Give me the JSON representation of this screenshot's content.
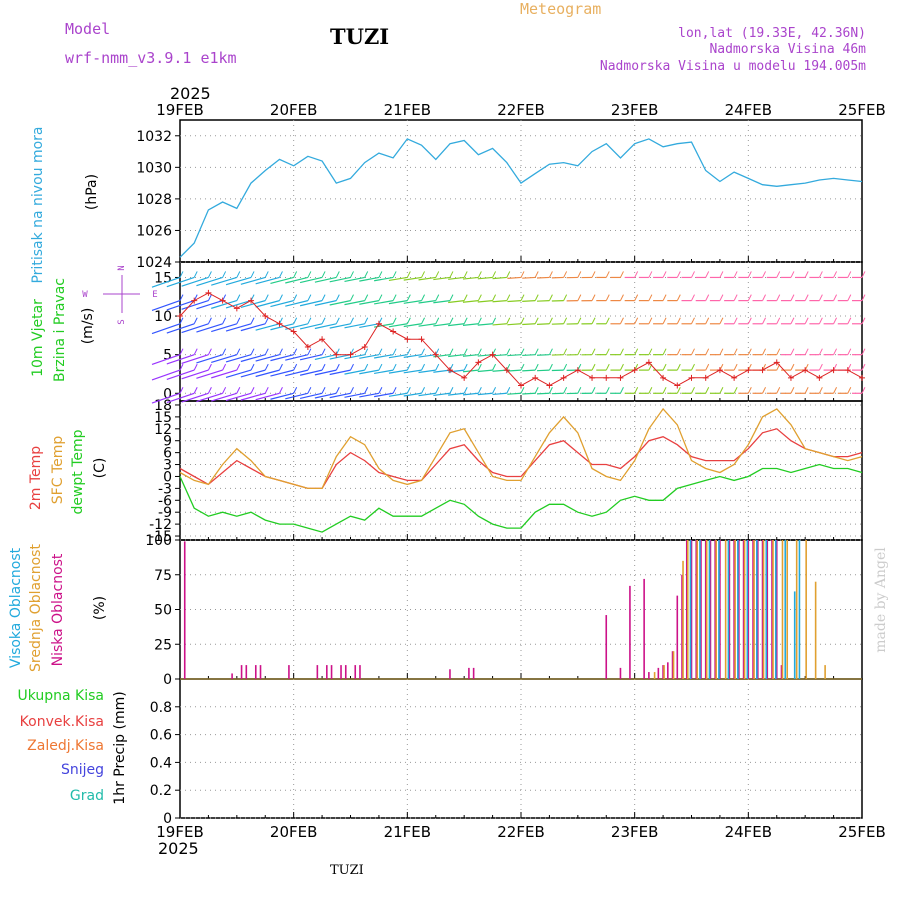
{
  "header": {
    "model_label": "Model",
    "model_name": "wrf-nmm_v3.9.1  e1km",
    "station": "TUZI",
    "chart_title": "Meteogram",
    "lonlat": "lon,lat (19.33E, 42.36N)",
    "elevation": "Nadmorska Visina 46m",
    "model_elevation": "Nadmorska Visina u modelu 194.005m"
  },
  "footer": {
    "station": "TUZI",
    "credit": "made by Angel"
  },
  "colors": {
    "pressure": "#33aadd",
    "temp2m": "#e84040",
    "sfc_temp": "#e0a030",
    "dewpoint": "#22cc22",
    "high_cloud": "#22aadd",
    "mid_cloud": "#e0a030",
    "low_cloud": "#cc1188",
    "wind_trace": "#dd2222",
    "grid": "#999999",
    "purple_text": "#aa44cc",
    "orange_title": "#e8b060"
  },
  "chart_data": [
    {
      "type": "line",
      "panel": "pressure",
      "year": "2025",
      "x_tick_labels": [
        "19FEB",
        "20FEB",
        "21FEB",
        "22FEB",
        "23FEB",
        "24FEB",
        "25FEB"
      ],
      "xlim": [
        0,
        144
      ],
      "labels": [
        "Pritisak na nivou mora",
        "(hPa)"
      ],
      "ylim": [
        1024,
        1033
      ],
      "y_ticks": [
        1024,
        1026,
        1028,
        1030,
        1032
      ],
      "grid": true,
      "series": [
        {
          "x": [
            0,
            3,
            6,
            9,
            12,
            15,
            18,
            21,
            24,
            27,
            30,
            33,
            36,
            39,
            42,
            45,
            48,
            51,
            54,
            57,
            60,
            63,
            66,
            69,
            72,
            75,
            78,
            81,
            84,
            87,
            90,
            93,
            96,
            99,
            102,
            105,
            108,
            111,
            114,
            117,
            120,
            123,
            126,
            129,
            132,
            135,
            138,
            141,
            144
          ],
          "values": [
            1024.3,
            1025.2,
            1027.3,
            1027.8,
            1027.4,
            1029.0,
            1029.8,
            1030.5,
            1030.1,
            1030.7,
            1030.4,
            1029.0,
            1029.3,
            1030.3,
            1030.9,
            1030.6,
            1031.8,
            1031.4,
            1030.5,
            1031.5,
            1031.7,
            1030.8,
            1031.2,
            1030.3,
            1029.0,
            1029.6,
            1030.2,
            1030.3,
            1030.1,
            1031.0,
            1031.5,
            1030.6,
            1031.5,
            1031.8,
            1031.3,
            1031.5,
            1031.6,
            1029.8,
            1029.1,
            1029.7,
            1029.3,
            1028.9,
            1028.8,
            1028.9,
            1029.0,
            1029.2,
            1029.3,
            1029.2,
            1029.1
          ]
        }
      ]
    },
    {
      "type": "line",
      "panel": "wind",
      "labels": [
        "10m Vjetar",
        "Brzina i Pravac",
        "(m/s)"
      ],
      "compass": [
        "N",
        "W",
        "E",
        "S"
      ],
      "ylim": [
        -1,
        17
      ],
      "y_ticks": [
        0,
        5,
        10,
        15
      ],
      "grid": true,
      "series": [
        {
          "name": "speed",
          "x": [
            0,
            3,
            6,
            9,
            12,
            15,
            18,
            21,
            24,
            27,
            30,
            33,
            36,
            39,
            42,
            45,
            48,
            51,
            54,
            57,
            60,
            63,
            66,
            69,
            72,
            75,
            78,
            81,
            84,
            87,
            90,
            93,
            96,
            99,
            102,
            105,
            108,
            111,
            114,
            117,
            120,
            123,
            126,
            129,
            132,
            135,
            138,
            141,
            144
          ],
          "values": [
            10,
            12,
            13,
            12,
            11,
            12,
            10,
            9,
            8,
            6,
            7,
            5,
            5,
            6,
            9,
            8,
            7,
            7,
            5,
            3,
            2,
            4,
            5,
            3,
            1,
            2,
            1,
            2,
            3,
            2,
            2,
            2,
            3,
            4,
            2,
            1,
            2,
            2,
            3,
            2,
            3,
            3,
            4,
            2,
            3,
            2,
            3,
            3,
            2
          ]
        }
      ],
      "barb_rows": [
        0,
        3,
        5,
        9,
        12,
        15
      ]
    },
    {
      "type": "line",
      "panel": "temperature",
      "labels": [
        "2m Temp",
        "SFC Temp",
        "dewpt Temp",
        "(C)"
      ],
      "ylim": [
        -16,
        19
      ],
      "y_ticks": [
        -15,
        -12,
        -9,
        -6,
        -3,
        0,
        3,
        6,
        9,
        12,
        15,
        18
      ],
      "grid": true,
      "x": [
        0,
        3,
        6,
        9,
        12,
        15,
        18,
        21,
        24,
        27,
        30,
        33,
        36,
        39,
        42,
        45,
        48,
        51,
        54,
        57,
        60,
        63,
        66,
        69,
        72,
        75,
        78,
        81,
        84,
        87,
        90,
        93,
        96,
        99,
        102,
        105,
        108,
        111,
        114,
        117,
        120,
        123,
        126,
        129,
        132,
        135,
        138,
        141,
        144
      ],
      "series": [
        {
          "name": "2m Temp",
          "values": [
            2,
            0,
            -2,
            1,
            4,
            2,
            0,
            -1,
            -2,
            -3,
            -3,
            3,
            6,
            4,
            1,
            0,
            -1,
            -1,
            3,
            7,
            8,
            4,
            1,
            0,
            0,
            4,
            8,
            9,
            6,
            3,
            3,
            2,
            5,
            9,
            10,
            8,
            5,
            4,
            4,
            4,
            7,
            11,
            12,
            9,
            7,
            6,
            5,
            5,
            6
          ]
        },
        {
          "name": "SFC Temp",
          "values": [
            1,
            -1,
            -2,
            3,
            7,
            4,
            0,
            -1,
            -2,
            -3,
            -3,
            5,
            10,
            8,
            2,
            -1,
            -2,
            -1,
            5,
            11,
            12,
            6,
            0,
            -1,
            -1,
            5,
            11,
            15,
            11,
            2,
            0,
            -1,
            4,
            12,
            17,
            13,
            4,
            2,
            1,
            3,
            8,
            15,
            17,
            13,
            7,
            6,
            5,
            4,
            5
          ]
        },
        {
          "name": "dewpt Temp",
          "values": [
            0,
            -8,
            -10,
            -9,
            -10,
            -9,
            -11,
            -12,
            -12,
            -13,
            -14,
            -12,
            -10,
            -11,
            -8,
            -10,
            -10,
            -10,
            -8,
            -6,
            -7,
            -10,
            -12,
            -13,
            -13,
            -9,
            -7,
            -7,
            -9,
            -10,
            -9,
            -6,
            -5,
            -6,
            -6,
            -3,
            -2,
            -1,
            0,
            -1,
            0,
            2,
            2,
            1,
            2,
            3,
            2,
            2,
            1
          ]
        }
      ]
    },
    {
      "type": "bar",
      "panel": "clouds",
      "labels": [
        "Visoka Oblacnost",
        "Srednja Oblacnost",
        "Niska Oblacnost",
        "(%)"
      ],
      "ylim": [
        0,
        100
      ],
      "y_ticks": [
        0,
        25,
        50,
        75,
        100
      ],
      "grid": true,
      "series": [
        {
          "name": "Niska Oblacnost",
          "x": [
            1,
            11,
            13,
            14,
            16,
            17,
            23,
            29,
            31,
            32,
            34,
            35,
            37,
            38,
            57,
            61,
            62,
            90,
            93,
            95,
            98,
            99,
            101,
            102,
            103,
            104,
            105,
            106,
            107,
            108,
            109,
            110,
            111,
            112,
            113,
            114,
            116,
            117,
            118,
            119,
            120,
            121,
            122,
            123,
            124,
            125,
            126,
            127
          ],
          "values": [
            99,
            4,
            10,
            10,
            10,
            10,
            10,
            10,
            10,
            10,
            10,
            10,
            10,
            10,
            7,
            8,
            8,
            46,
            8,
            67,
            72,
            5,
            8,
            10,
            12,
            20,
            60,
            75,
            100,
            100,
            100,
            100,
            100,
            100,
            100,
            100,
            100,
            100,
            100,
            100,
            100,
            100,
            100,
            100,
            100,
            100,
            100,
            10
          ]
        },
        {
          "name": "Srednja Oblacnost",
          "x": [
            100,
            102,
            104,
            106,
            107,
            109,
            111,
            113,
            115,
            117,
            119,
            121,
            123,
            125,
            127,
            128,
            130,
            132,
            134,
            136
          ],
          "values": [
            5,
            10,
            20,
            85,
            100,
            100,
            100,
            100,
            100,
            100,
            100,
            100,
            100,
            100,
            100,
            100,
            100,
            100,
            70,
            10
          ]
        },
        {
          "name": "Visoka Oblacnost",
          "x": [
            108,
            110,
            112,
            114,
            116,
            118,
            120,
            122,
            124,
            126,
            128,
            130,
            131
          ],
          "values": [
            100,
            100,
            100,
            100,
            100,
            100,
            100,
            100,
            100,
            100,
            100,
            63,
            100
          ]
        }
      ]
    },
    {
      "type": "bar",
      "panel": "precipitation",
      "labels": [
        "Ukupna Kisa",
        "Konvek.Kisa",
        "Zaledj.Kisa",
        "Snijeg",
        "Grad",
        "1hr Precip (mm)"
      ],
      "ylim": [
        0,
        1.0
      ],
      "y_ticks": [
        0,
        0.2,
        0.4,
        0.6,
        0.8
      ],
      "grid": true,
      "series": []
    }
  ]
}
